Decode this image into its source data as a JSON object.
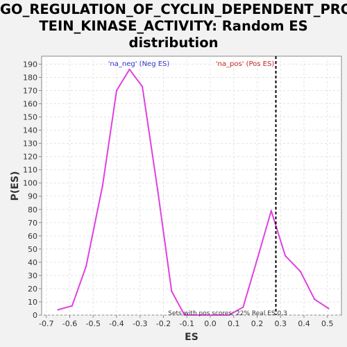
{
  "chart_data": {
    "type": "line",
    "title_lines": [
      "GO_REGULATION_OF_CYCLIN_DEPENDENT_PRO",
      "TEIN_KINASE_ACTIVITY: Random ES",
      "distribution"
    ],
    "xlabel": "ES",
    "ylabel": "P(ES)",
    "xlim": [
      -0.72,
      0.56
    ],
    "ylim": [
      0,
      196
    ],
    "x_ticks": [
      "-0.7",
      "-0.6",
      "-0.5",
      "-0.4",
      "-0.3",
      "-0.2",
      "-0.1",
      "0.0",
      "0.1",
      "0.2",
      "0.3",
      "0.4",
      "0.5"
    ],
    "y_ticks": [
      "0",
      "10",
      "20",
      "30",
      "40",
      "50",
      "60",
      "70",
      "80",
      "90",
      "100",
      "110",
      "120",
      "130",
      "140",
      "150",
      "160",
      "170",
      "180",
      "190"
    ],
    "grid": true,
    "series": [
      {
        "color": "#e040e0",
        "x": [
          -0.65,
          -0.59,
          -0.53,
          -0.46,
          -0.4,
          -0.345,
          -0.29,
          -0.225,
          -0.165,
          -0.11,
          -0.045,
          0.01,
          0.08,
          0.14,
          0.2,
          0.26,
          0.32,
          0.385,
          0.445,
          0.505
        ],
        "y": [
          4,
          7,
          37,
          98,
          170,
          186,
          173,
          95,
          18,
          0,
          0,
          0,
          0,
          6,
          42,
          79,
          45,
          33,
          12,
          5
        ]
      }
    ],
    "real_es": 0.28,
    "real_es_color": "#000000",
    "annotations": {
      "neg": {
        "text": "'na_neg' (Neg ES)",
        "color": "#3333cc"
      },
      "pos": {
        "text": "'na_pos' (Pos ES)",
        "color": "#cc2222"
      },
      "footer": "Sets with pos scores: 22%  Real ES 0.3"
    }
  }
}
